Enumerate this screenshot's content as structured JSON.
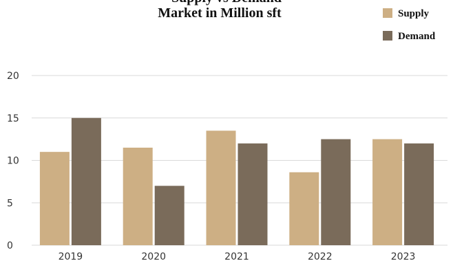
{
  "chart_data": {
    "type": "bar",
    "title": "Supply vs Demand",
    "subtitle": "Market in Million sft",
    "categories": [
      "2019",
      "2020",
      "2021",
      "2022",
      "2023"
    ],
    "series": [
      {
        "name": "Supply",
        "color": "#cdaf84",
        "values": [
          11,
          11.5,
          13.5,
          8.6,
          12.5
        ]
      },
      {
        "name": "Demand",
        "color": "#7a6b5a",
        "values": [
          15,
          7,
          12,
          12.5,
          12
        ]
      }
    ],
    "ylim": [
      0,
      20
    ],
    "yticks": [
      "0",
      "5",
      "10",
      "15",
      "20"
    ],
    "grid": true,
    "legend": "top-right"
  }
}
